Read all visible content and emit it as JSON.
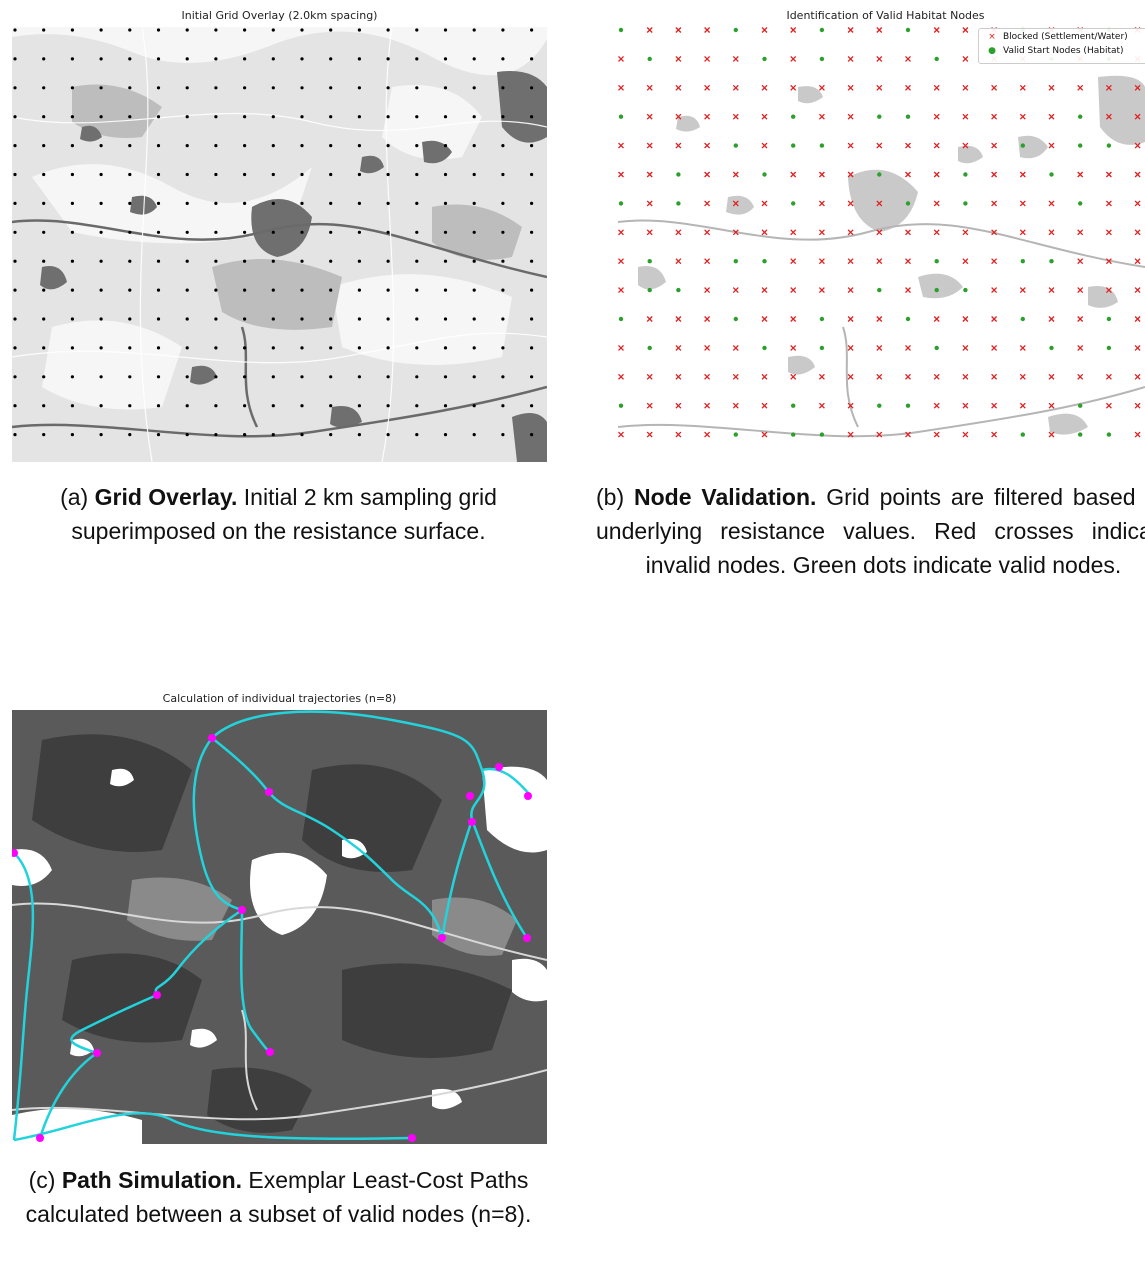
{
  "panels": {
    "a": {
      "title": "Initial Grid Overlay (2.0km spacing)",
      "caption_label": "(a)",
      "caption_bold": "Grid Overlay.",
      "caption_text": " Initial 2 km sampling grid superimposed on the resistance surface."
    },
    "b": {
      "title": "Identification of Valid Habitat Nodes",
      "legend": {
        "blocked": "Blocked (Settlement/Water)",
        "valid": "Valid Start Nodes (Habitat)"
      },
      "caption_label": "(b)",
      "caption_bold": "Node Validation.",
      "caption_text": " Grid points are filtered based on underlying resistance values. Red crosses indicate invalid nodes. Green dots indicate valid nodes."
    },
    "c": {
      "title": "Calculation of individual trajectories (n=8)",
      "caption_label": "(c)",
      "caption_bold": "Path Simulation.",
      "caption_text": " Exemplar Least-Cost Paths calculated between a subset of valid nodes (n=8)."
    }
  },
  "colors": {
    "grid_dot": "#000000",
    "blocked": "#e02020",
    "valid": "#2ca02c",
    "path": "#22d3dc",
    "node": "#ff00ff"
  }
}
